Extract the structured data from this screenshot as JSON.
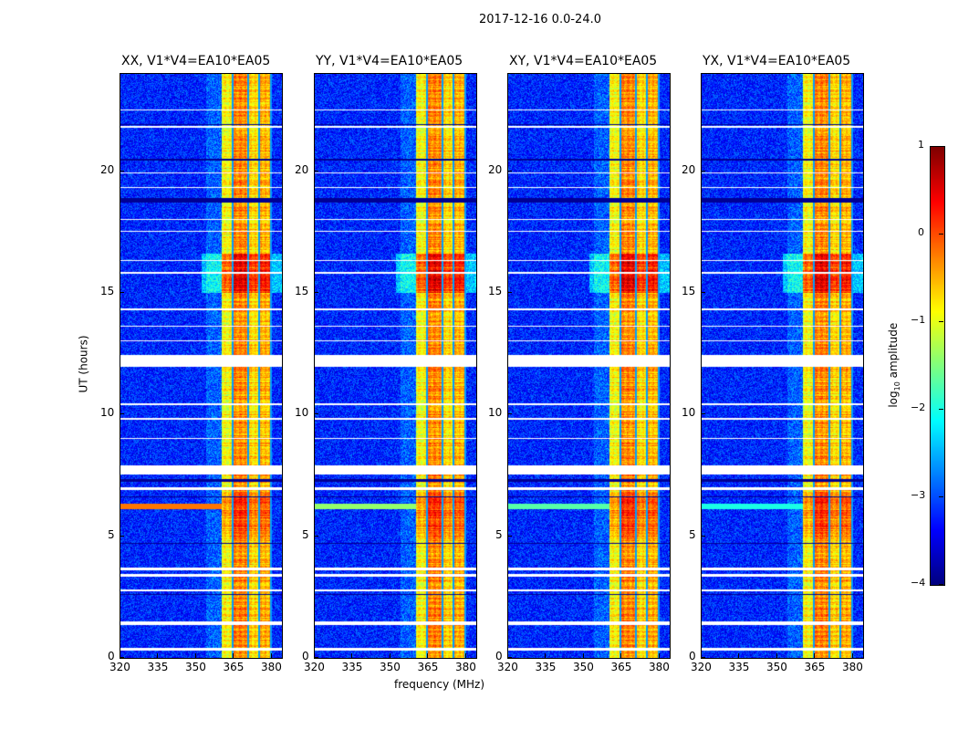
{
  "figure_title": "2017-12-16 0.0-24.0",
  "chart_data": {
    "type": "heatmap",
    "title": "2017-12-16 0.0-24.0",
    "xlabel": "frequency (MHz)",
    "ylabel": "UT (hours)",
    "xlim": [
      320,
      384
    ],
    "ylim": [
      0,
      24
    ],
    "xticks": [
      320,
      335,
      350,
      365,
      380
    ],
    "yticks": [
      0,
      5,
      10,
      15,
      20
    ],
    "panels": [
      {
        "title": "XX, V1*V4=EA10*EA05",
        "rfi_6h_strength": 1.0
      },
      {
        "title": "YY, V1*V4=EA10*EA05",
        "rfi_6h_strength": 0.6
      },
      {
        "title": "XY, V1*V4=EA10*EA05",
        "rfi_6h_strength": 0.5
      },
      {
        "title": "YX, V1*V4=EA10*EA05",
        "rfi_6h_strength": 0.4
      }
    ],
    "bright_band_MHz": [
      360,
      380
    ],
    "band_divisions_MHz": [
      364.5,
      370.5,
      375,
      379.5
    ],
    "flagged_hours": [
      [
        0.3,
        0.4
      ],
      [
        1.35,
        1.5
      ],
      [
        2.75,
        2.8
      ],
      [
        3.35,
        3.45
      ],
      [
        3.6,
        3.7
      ],
      [
        6.9,
        7.0
      ],
      [
        7.55,
        7.9
      ],
      [
        9.0,
        9.05
      ],
      [
        9.8,
        9.85
      ],
      [
        10.4,
        10.45
      ],
      [
        11.95,
        12.45
      ],
      [
        13.0,
        13.05
      ],
      [
        13.6,
        13.65
      ],
      [
        14.3,
        14.35
      ],
      [
        15.8,
        15.85
      ],
      [
        16.3,
        16.35
      ],
      [
        17.5,
        17.55
      ],
      [
        18.0,
        18.05
      ],
      [
        19.3,
        19.35
      ],
      [
        19.9,
        19.95
      ],
      [
        21.8,
        21.85
      ],
      [
        22.5,
        22.55
      ]
    ],
    "zero_hours": [
      [
        2.6,
        2.63
      ],
      [
        4.7,
        4.73
      ],
      [
        6.6,
        6.63
      ],
      [
        7.25,
        7.35
      ],
      [
        18.7,
        18.9
      ],
      [
        20.45,
        20.5
      ],
      [
        21.9,
        21.93
      ]
    ],
    "colorbar": {
      "label": "log10 amplitude",
      "label_main": "log",
      "label_sub": "10",
      "label_rest": " amplitude",
      "range": [
        -4,
        1
      ],
      "ticks": [
        -4,
        -3,
        -2,
        -1,
        0,
        1
      ],
      "colormap": "jet"
    }
  }
}
